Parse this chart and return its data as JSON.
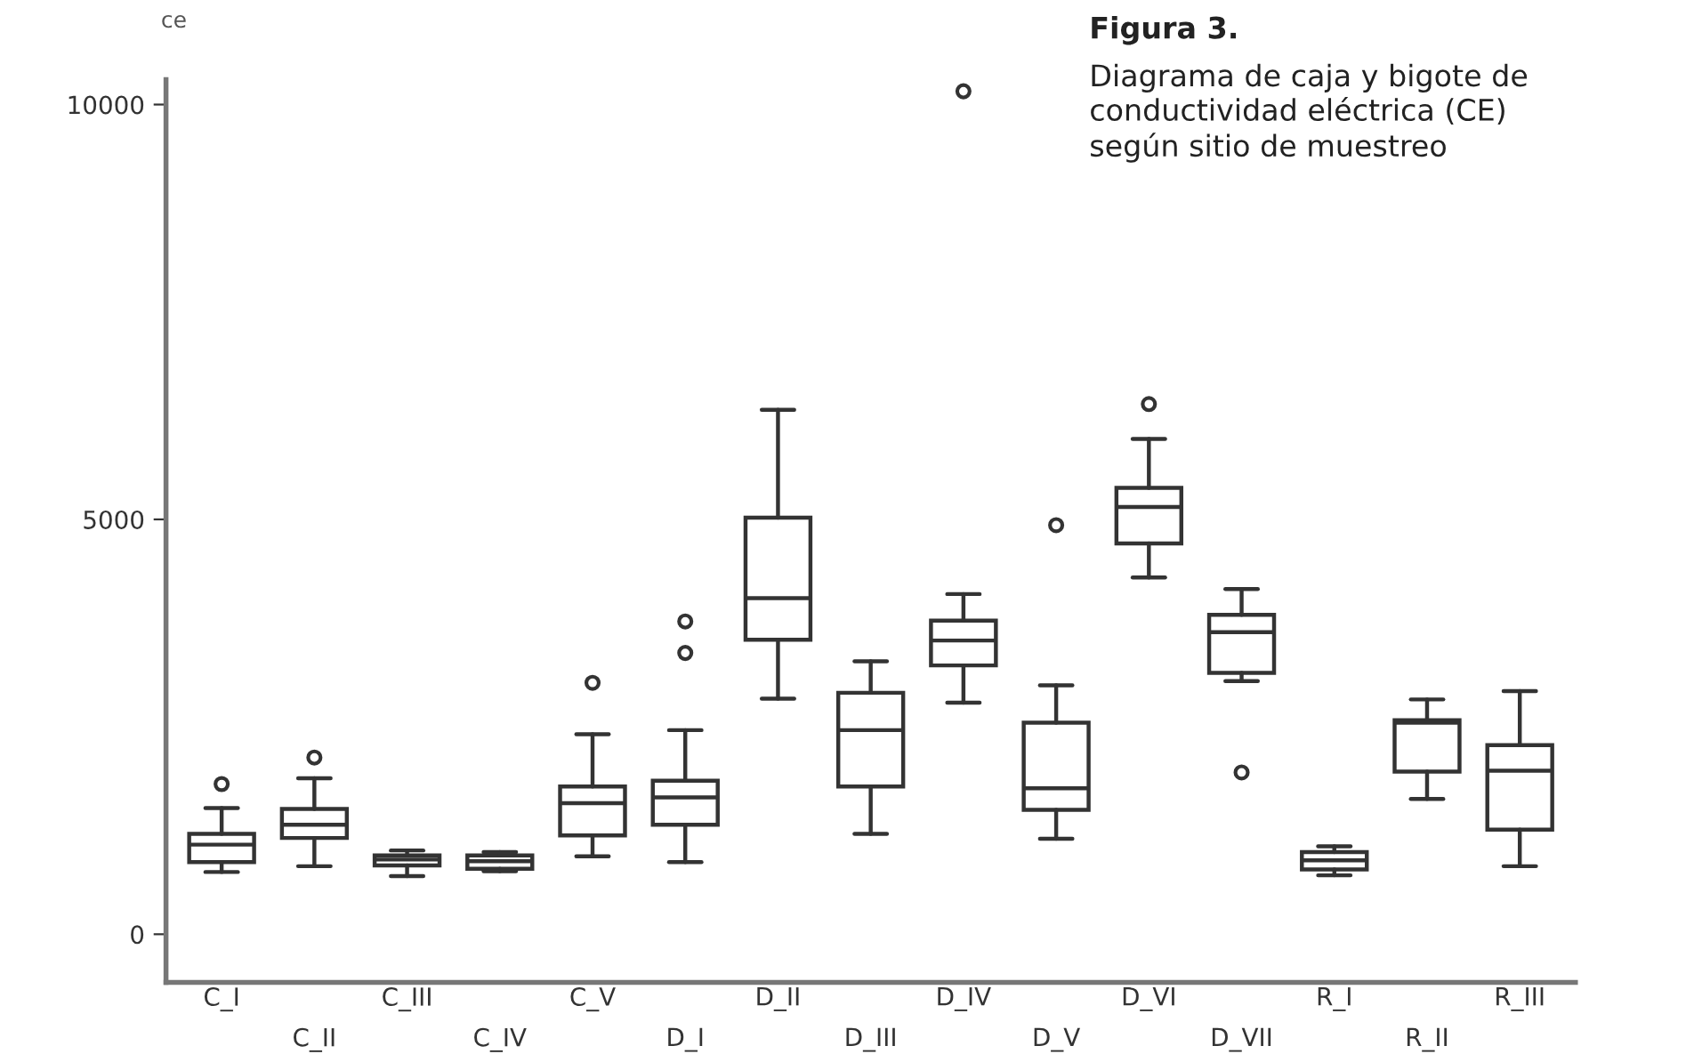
{
  "chart_data": {
    "type": "box",
    "title": "Figura 3.",
    "subtitle": "Diagrama de caja y bigote de\nconductividad eléctrica (CE)\nsegún sitio de muestreo",
    "ylabel": "ce",
    "categories": [
      "C_I",
      "C_II",
      "C_III",
      "C_IV",
      "C_V",
      "D_I",
      "D_II",
      "D_III",
      "D_IV",
      "D_V",
      "D_VI",
      "D_VII",
      "R_I",
      "R_II",
      "R_III"
    ],
    "boxes": [
      {
        "low": 750,
        "q1": 870,
        "median": 1080,
        "q3": 1210,
        "high": 1520,
        "outliers": [
          1810
        ]
      },
      {
        "low": 820,
        "q1": 1160,
        "median": 1320,
        "q3": 1510,
        "high": 1880,
        "outliers": [
          2130
        ]
      },
      {
        "low": 700,
        "q1": 830,
        "median": 900,
        "q3": 950,
        "high": 1010
      },
      {
        "low": 760,
        "q1": 790,
        "median": 880,
        "q3": 950,
        "high": 990
      },
      {
        "low": 940,
        "q1": 1190,
        "median": 1580,
        "q3": 1780,
        "high": 2410,
        "outliers": [
          3030
        ]
      },
      {
        "low": 870,
        "q1": 1320,
        "median": 1650,
        "q3": 1850,
        "high": 2460,
        "outliers": [
          3390,
          3770
        ]
      },
      {
        "low": 2840,
        "q1": 3550,
        "median": 4050,
        "q3": 5020,
        "high": 6320
      },
      {
        "low": 1210,
        "q1": 1780,
        "median": 2460,
        "q3": 2910,
        "high": 3290
      },
      {
        "low": 2790,
        "q1": 3240,
        "median": 3540,
        "q3": 3780,
        "high": 4100,
        "outliers": [
          10160
        ]
      },
      {
        "low": 1150,
        "q1": 1500,
        "median": 1760,
        "q3": 2550,
        "high": 3000,
        "outliers": [
          4930
        ]
      },
      {
        "low": 4300,
        "q1": 4710,
        "median": 5150,
        "q3": 5380,
        "high": 5970,
        "outliers": [
          6390
        ]
      },
      {
        "low": 3050,
        "q1": 3150,
        "median": 3640,
        "q3": 3850,
        "high": 4160,
        "outliers": [
          1950
        ]
      },
      {
        "low": 710,
        "q1": 780,
        "median": 890,
        "q3": 990,
        "high": 1060
      },
      {
        "low": 1630,
        "q1": 1960,
        "median": 2550,
        "q3": 2580,
        "high": 2830
      },
      {
        "low": 820,
        "q1": 1260,
        "median": 1970,
        "q3": 2280,
        "high": 2930
      }
    ],
    "color": "#333333",
    "ylim": [
      -580,
      10300
    ],
    "yticks": [
      0,
      5000,
      10000
    ],
    "grid": false,
    "legend": false
  }
}
